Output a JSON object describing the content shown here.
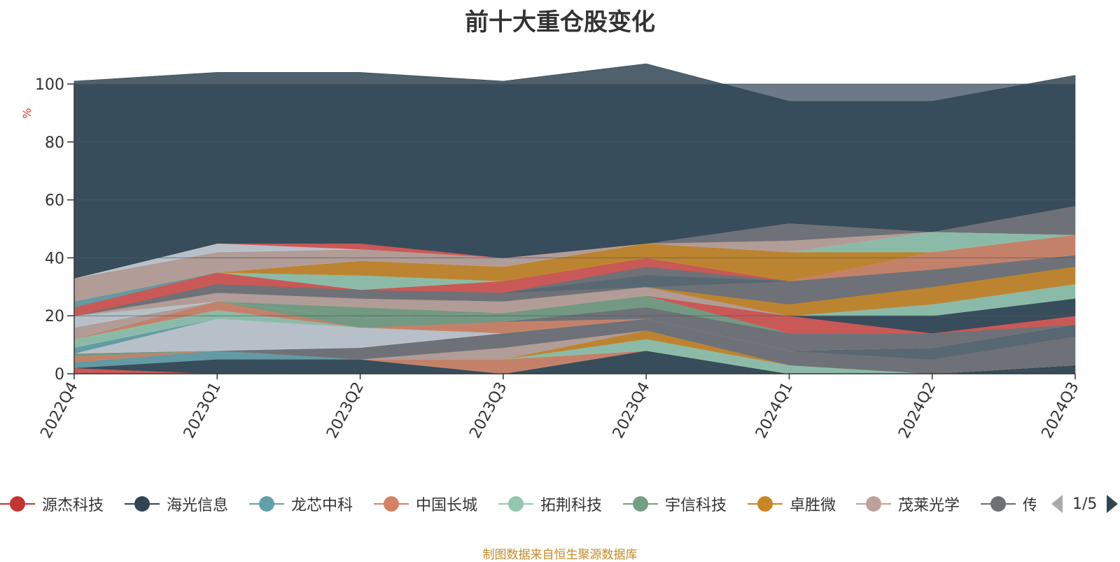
{
  "chart_data": {
    "type": "area",
    "title": "前十大重仓股变化",
    "ylabel": "%",
    "ylim": [
      0,
      100
    ],
    "yticks": [
      0,
      20,
      40,
      60,
      80,
      100
    ],
    "grid": true,
    "legend_position": "bottom",
    "categories": [
      "2022Q4",
      "2023Q1",
      "2023Q2",
      "2023Q3",
      "2023Q4",
      "2024Q1",
      "2024Q2",
      "2024Q3"
    ],
    "series": [
      {
        "name": "源杰科技",
        "color": "#d9534f",
        "values": [
          2,
          0,
          0,
          0,
          0,
          0,
          0,
          0
        ]
      },
      {
        "name": "海光信息",
        "color": "#2f4554",
        "values": [
          0,
          5,
          5,
          0,
          8,
          0,
          0,
          3
        ]
      },
      {
        "name": "龙芯中科",
        "color": "#61a0a8",
        "values": [
          2,
          3,
          0,
          0,
          0,
          0,
          0,
          0
        ]
      },
      {
        "name": "中国长城",
        "color": "#d48265",
        "values": [
          2,
          0,
          0,
          5,
          0,
          0,
          0,
          0
        ]
      },
      {
        "name": "拓荆科技",
        "color": "#91c7ae",
        "values": [
          0,
          0,
          0,
          0,
          4,
          3,
          0,
          0
        ]
      },
      {
        "name": "宇信科技",
        "color": "#749f83",
        "values": [
          1,
          0,
          0,
          0,
          0,
          0,
          0,
          0
        ]
      },
      {
        "name": "卓胜微",
        "color": "#ca8622",
        "values": [
          0,
          0,
          0,
          0,
          3,
          0,
          0,
          0
        ]
      },
      {
        "name": "茂莱光学",
        "color": "#bda29a",
        "values": [
          0,
          0,
          0,
          4,
          0,
          0,
          0,
          0
        ]
      },
      {
        "name": "传音控股",
        "color": "#6e7074",
        "values": [
          0,
          0,
          4,
          5,
          4,
          5,
          5,
          10
        ]
      },
      {
        "name": "",
        "color": "#546570",
        "values": [
          0,
          0,
          0,
          0,
          0,
          0,
          4,
          4
        ]
      },
      {
        "name": "",
        "color": "#c4ccd3",
        "values": [
          0,
          11,
          7,
          0,
          0,
          0,
          0,
          0
        ]
      },
      {
        "name": "",
        "color": "#61a0a8",
        "values": [
          2,
          0,
          0,
          0,
          0,
          0,
          0,
          0
        ]
      },
      {
        "name": "",
        "color": "#91c7ae",
        "values": [
          3,
          3,
          0,
          0,
          0,
          0,
          0,
          0
        ]
      },
      {
        "name": "",
        "color": "#d48265",
        "values": [
          0,
          3,
          0,
          4,
          0,
          0,
          0,
          0
        ]
      },
      {
        "name": "",
        "color": "#6e7074",
        "values": [
          0,
          0,
          0,
          0,
          4,
          6,
          5,
          0
        ]
      },
      {
        "name": "",
        "color": "#749f83",
        "values": [
          0,
          0,
          3,
          3,
          4,
          0,
          0,
          0
        ]
      },
      {
        "name": "",
        "color": "#d9534f",
        "values": [
          0,
          0,
          0,
          0,
          0,
          6,
          0,
          3
        ]
      },
      {
        "name": "",
        "color": "#2f4554",
        "values": [
          0,
          0,
          0,
          0,
          0,
          0,
          6,
          6
        ]
      },
      {
        "name": "",
        "color": "#91c7ae",
        "values": [
          0,
          0,
          0,
          0,
          0,
          0,
          4,
          5
        ]
      },
      {
        "name": "",
        "color": "#bda29a",
        "values": [
          4,
          0,
          0,
          0,
          0,
          0,
          0,
          0
        ]
      },
      {
        "name": "",
        "color": "#c4ccd3",
        "values": [
          4,
          0,
          0,
          0,
          0,
          0,
          0,
          0
        ]
      },
      {
        "name": "",
        "color": "#749f83",
        "values": [
          0,
          0,
          4,
          0,
          0,
          0,
          0,
          0
        ]
      },
      {
        "name": "",
        "color": "#bda29a",
        "values": [
          0,
          3,
          3,
          4,
          3,
          0,
          0,
          0
        ]
      },
      {
        "name": "",
        "color": "#6e7074",
        "values": [
          0,
          3,
          3,
          3,
          0,
          0,
          0,
          0
        ]
      },
      {
        "name": "",
        "color": "#ca8622",
        "values": [
          0,
          0,
          0,
          0,
          0,
          4,
          6,
          6
        ]
      },
      {
        "name": "",
        "color": "#6e7074",
        "values": [
          0,
          0,
          0,
          0,
          0,
          8,
          6,
          3
        ]
      },
      {
        "name": "",
        "color": "#546570",
        "values": [
          0,
          0,
          0,
          0,
          4,
          0,
          0,
          0
        ]
      },
      {
        "name": "",
        "color": "#6e7074",
        "values": [
          0,
          0,
          0,
          0,
          3,
          0,
          0,
          0
        ]
      },
      {
        "name": "",
        "color": "#d9534f",
        "values": [
          3,
          4,
          0,
          4,
          3,
          0,
          0,
          0
        ]
      },
      {
        "name": "",
        "color": "#91c7ae",
        "values": [
          0,
          0,
          5,
          0,
          0,
          0,
          0,
          0
        ]
      },
      {
        "name": "",
        "color": "#6e7074",
        "values": [
          0,
          0,
          0,
          0,
          0,
          0,
          0,
          1
        ]
      },
      {
        "name": "",
        "color": "#61a0a8",
        "values": [
          2,
          0,
          0,
          0,
          0,
          0,
          0,
          0
        ]
      },
      {
        "name": "",
        "color": "#d48265",
        "values": [
          0,
          0,
          0,
          0,
          0,
          0,
          6,
          7
        ]
      },
      {
        "name": "",
        "color": "#ca8622",
        "values": [
          0,
          0,
          5,
          5,
          5,
          10,
          0,
          0
        ]
      },
      {
        "name": "",
        "color": "#91c7ae",
        "values": [
          0,
          0,
          0,
          0,
          0,
          0,
          7,
          0
        ]
      },
      {
        "name": "",
        "color": "#bda29a",
        "values": [
          8,
          7,
          4,
          3,
          0,
          4,
          0,
          0
        ]
      },
      {
        "name": "",
        "color": "#c4ccd3",
        "values": [
          0,
          3,
          0,
          0,
          0,
          0,
          0,
          0
        ]
      },
      {
        "name": "",
        "color": "#d9534f",
        "values": [
          0,
          0,
          2,
          0,
          0,
          0,
          0,
          0
        ]
      },
      {
        "name": "",
        "color": "#6e7074",
        "values": [
          0,
          0,
          0,
          0,
          0,
          6,
          0,
          0
        ]
      },
      {
        "name": "",
        "color": "#6e7074",
        "values": [
          0,
          0,
          0,
          0,
          0,
          0,
          0,
          10
        ]
      },
      {
        "name": "",
        "color": "#2f4554",
        "values": [
          68,
          59,
          59,
          61,
          62,
          42,
          45,
          45
        ]
      }
    ]
  },
  "legend": {
    "items": [
      {
        "name": "源杰科技",
        "color": "#c23531"
      },
      {
        "name": "海光信息",
        "color": "#2f4554"
      },
      {
        "name": "龙芯中科",
        "color": "#61a0a8"
      },
      {
        "name": "中国长城",
        "color": "#d48265"
      },
      {
        "name": "拓荆科技",
        "color": "#91c7ae"
      },
      {
        "name": "宇信科技",
        "color": "#749f83"
      },
      {
        "name": "卓胜微",
        "color": "#ca8622"
      },
      {
        "name": "茂莱光学",
        "color": "#bda29a"
      },
      {
        "name": "传音控股",
        "color": "#6e7074"
      }
    ],
    "page_indicator": "1/5"
  },
  "footer": {
    "source_note": "制图数据来自恒生聚源数据库"
  }
}
